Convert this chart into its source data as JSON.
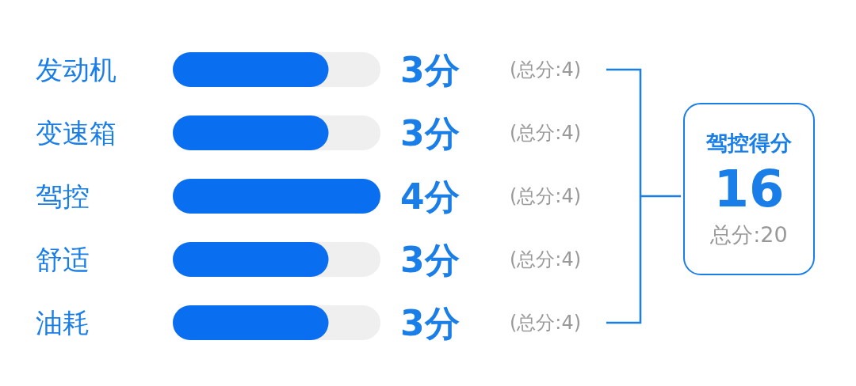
{
  "chart_data": {
    "type": "bar",
    "orientation": "horizontal",
    "categories": [
      "发动机",
      "变速箱",
      "驾控",
      "舒适",
      "油耗"
    ],
    "series": [
      {
        "color": "#0a6ef0",
        "values": [
          3,
          3,
          4,
          3,
          3
        ],
        "value_labels": [
          "3分",
          "3分",
          "4分",
          "3分",
          "3分"
        ]
      }
    ],
    "xlim": [
      0,
      4
    ],
    "tick_labels": "y",
    "grid": false,
    "legend": false,
    "annotations": [
      "(总分:4)",
      "(总分:4)",
      "(总分:4)",
      "(总分:4)",
      "(总分:4)",
      "驾控得分",
      "16",
      "总分:20"
    ]
  }
}
